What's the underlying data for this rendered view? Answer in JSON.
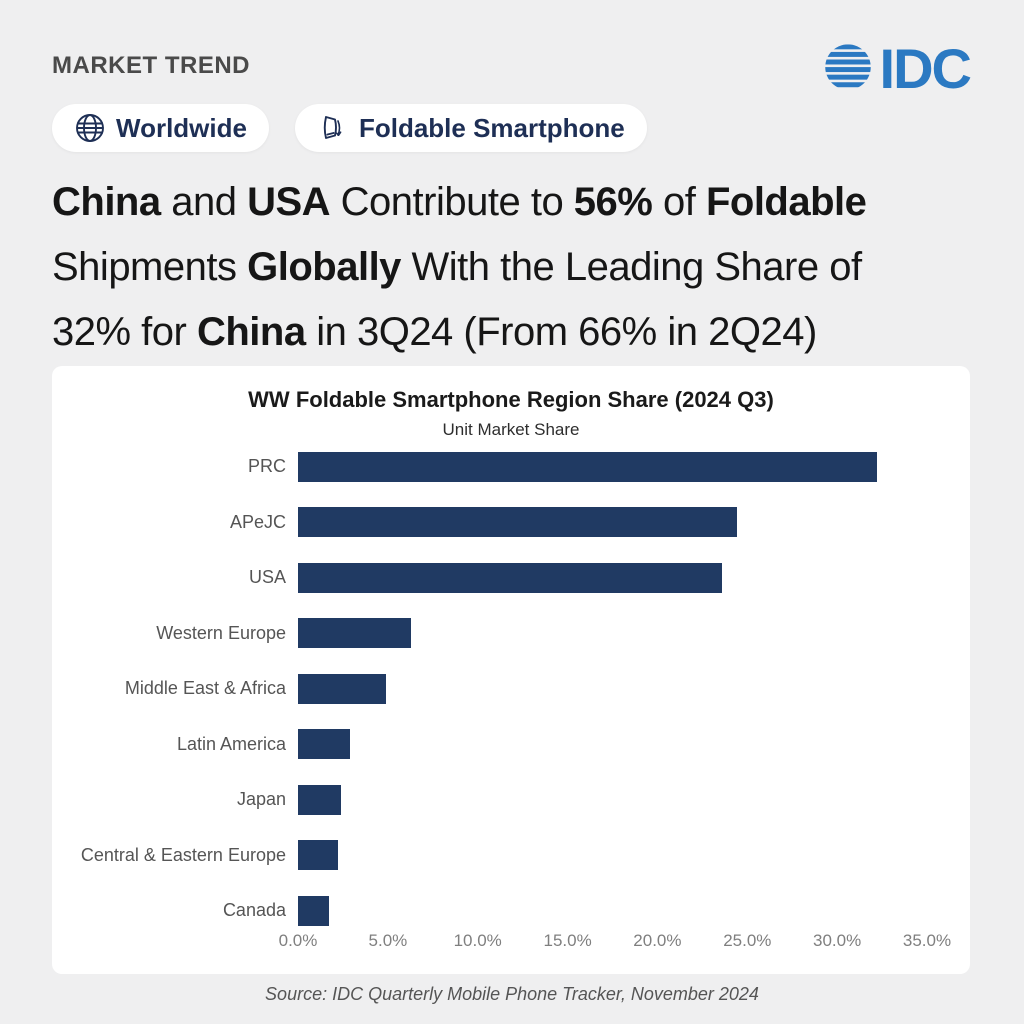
{
  "page": {
    "eyebrow": "MARKET TREND",
    "logo_text": "IDC",
    "badges": [
      {
        "icon": "globe-icon",
        "label": "Worldwide"
      },
      {
        "icon": "foldable-phone-icon",
        "label": "Foldable Smartphone"
      }
    ],
    "headline_lines": [
      [
        {
          "t": "China",
          "b": true
        },
        {
          "t": " and ",
          "b": false
        },
        {
          "t": "USA",
          "b": true
        },
        {
          "t": " Contribute to ",
          "b": false
        },
        {
          "t": "56%",
          "b": true
        },
        {
          "t": " of ",
          "b": false
        },
        {
          "t": "Foldable",
          "b": true
        }
      ],
      [
        {
          "t": "Shipments ",
          "b": false
        },
        {
          "t": "Globally",
          "b": true
        },
        {
          "t": " With the Leading Share of",
          "b": false
        }
      ],
      [
        {
          "t": "32% for ",
          "b": false
        },
        {
          "t": "China",
          "b": true
        },
        {
          "t": " in 3Q24 (From 66% in 2Q24)",
          "b": false
        }
      ]
    ],
    "source": "Source: IDC Quarterly Mobile Phone Tracker, November 2024"
  },
  "chart_data": {
    "type": "bar",
    "orientation": "horizontal",
    "title": "WW Foldable Smartphone Region Share (2024 Q3)",
    "subtitle": "Unit Market Share",
    "categories": [
      "PRC",
      "APeJC",
      "USA",
      "Western Europe",
      "Middle East & Africa",
      "Latin America",
      "Japan",
      "Central & Eastern Europe",
      "Canada"
    ],
    "values": [
      32.2,
      24.4,
      23.6,
      6.3,
      4.9,
      2.9,
      2.4,
      2.2,
      1.7
    ],
    "unit": "%",
    "xlabel": "",
    "ylabel": "",
    "xlim": [
      0,
      35
    ],
    "x_ticks": [
      "0.0%",
      "5.0%",
      "10.0%",
      "15.0%",
      "20.0%",
      "25.0%",
      "30.0%",
      "35.0%"
    ],
    "grid": false,
    "legend": "none",
    "bar_color": "#203a63"
  },
  "colors": {
    "background": "#efeff0",
    "card": "#ffffff",
    "bar": "#203a63",
    "navy_text": "#1e2f55",
    "idc_blue": "#2b79c2",
    "headline": "#161616",
    "muted_gray": "#555555",
    "tick_gray": "#7f7f7f"
  }
}
